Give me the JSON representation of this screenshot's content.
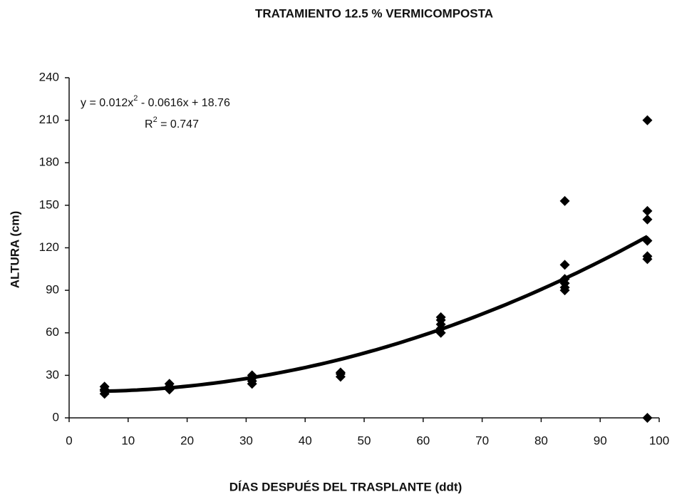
{
  "chart_data": {
    "type": "scatter",
    "title": "TRATAMIENTO 12.5 % VERMICOMPOSTA",
    "x_label": "DÍAS  DESPUÉS DEL TRASPLANTE (ddt)",
    "y_label": "ALTURA (cm)",
    "x": [
      6,
      6,
      6,
      6,
      17,
      17,
      17,
      31,
      31,
      31,
      31,
      46,
      46,
      46,
      63,
      63,
      63,
      63,
      63,
      84,
      84,
      84,
      84,
      84,
      84,
      98,
      98,
      98,
      98,
      98,
      98,
      98
    ],
    "values": [
      17,
      19,
      20,
      22,
      20,
      22,
      24,
      24,
      26,
      28,
      30,
      29,
      31,
      32,
      60,
      63,
      66,
      69,
      71,
      90,
      92,
      95,
      98,
      108,
      153,
      0,
      112,
      114,
      125,
      140,
      146,
      210
    ],
    "color": "#000000",
    "xlim": [
      0,
      100
    ],
    "xticks": [
      0,
      10,
      20,
      30,
      40,
      50,
      60,
      70,
      80,
      90,
      100
    ],
    "ylim": [
      0,
      240
    ],
    "yticks": [
      0,
      30,
      60,
      90,
      120,
      150,
      180,
      210,
      240
    ],
    "grid": false,
    "trendline": {
      "coefficients": [
        0.012,
        -0.0616,
        18.76
      ],
      "x_range": [
        6,
        98
      ],
      "equation": [
        "y = 0.012x",
        "2",
        " - 0.0616x + 18.76"
      ],
      "r_squared": [
        "R",
        "2",
        " = 0.747"
      ]
    }
  }
}
